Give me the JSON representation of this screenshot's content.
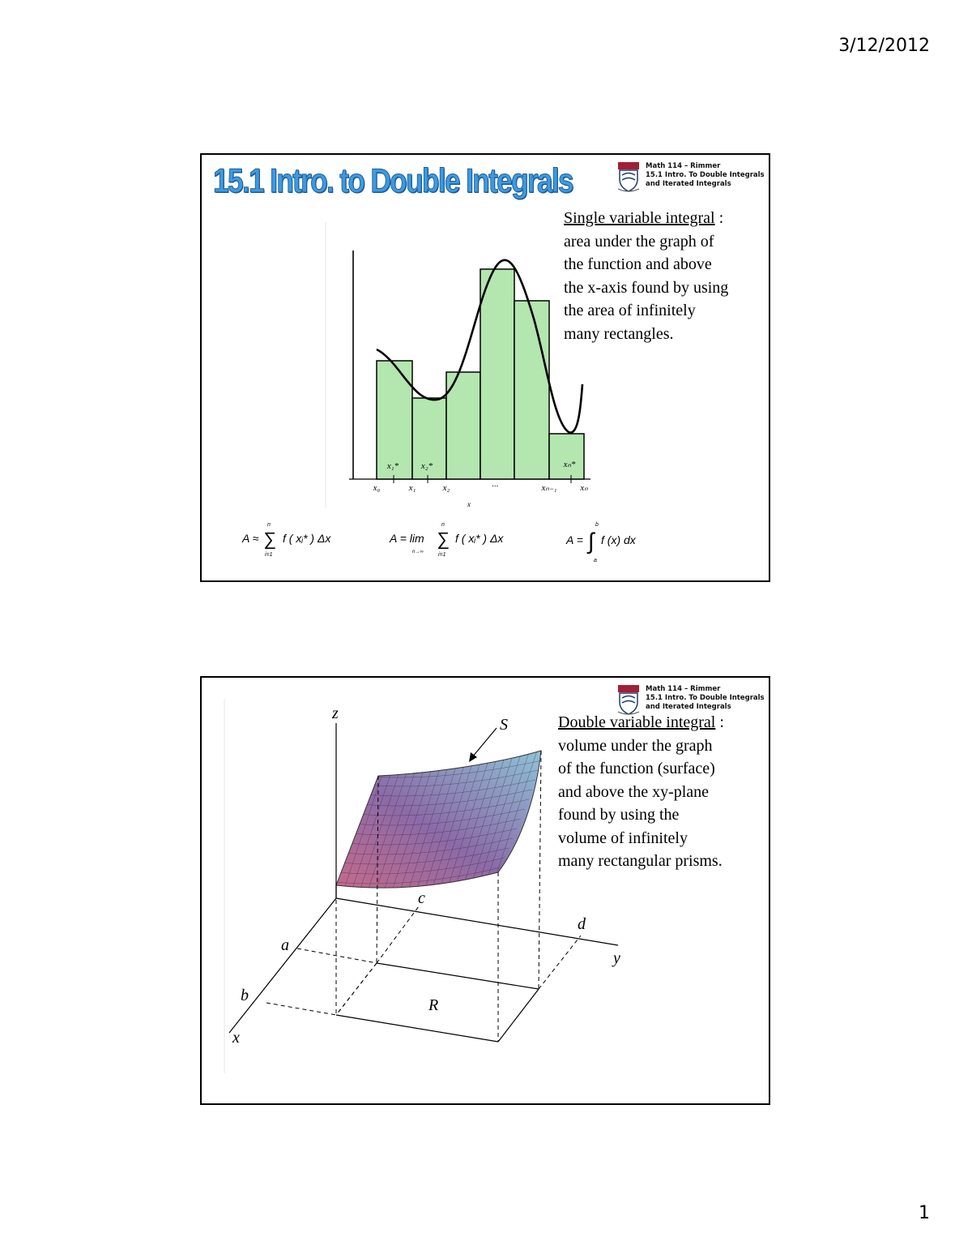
{
  "page": {
    "date": "3/12/2012",
    "number": "1"
  },
  "slides": [
    {
      "title": "15.1 Intro. to Double Integrals",
      "course": [
        "Math 114 – Rimmer",
        "15.1 Intro. To Double Integrals",
        "and Iterated Integrals"
      ],
      "desc_head": "Single variable integral",
      "desc_tail": " :",
      "desc_lines": [
        "area under the graph of",
        "the function and above",
        "the x-axis found by using",
        "the area of infinitely",
        "many rectangles."
      ],
      "x_labels": [
        "x₀",
        "x₁",
        "x₂",
        "···",
        "xₙ₋₁",
        "xₙ"
      ],
      "star_labels": [
        "x₁*",
        "x₂*",
        "xₙ*"
      ],
      "axis_label": "x",
      "formulas": {
        "riemann": {
          "lhs": "A ≈",
          "sigma": "∑",
          "upper": "n",
          "lower": "i=1",
          "body": "f ( xᵢ* ) Δx"
        },
        "limit": {
          "lhs": "A = lim",
          "sub": "n→∞",
          "sigma": "∑",
          "upper": "n",
          "lower": "i=1",
          "body": "f ( xᵢ* ) Δx"
        },
        "integral": {
          "lhs": "A =",
          "sign": "∫",
          "upper": "b",
          "lower": "a",
          "body": "f (x) dx"
        }
      },
      "colors": {
        "rect_fill": "#b4e6b0",
        "title": "#3b9be0"
      }
    },
    {
      "course": [
        "Math 114 – Rimmer",
        "15.1 Intro. To Double Integrals",
        "and Iterated Integrals"
      ],
      "desc_head": "Double variable integral",
      "desc_tail": " :",
      "desc_lines": [
        "volume under the graph",
        "of the function (surface)",
        "and above the xy-plane",
        "found by using the",
        "volume of infinitely",
        "many rectangular prisms."
      ],
      "labels": {
        "z": "z",
        "x": "x",
        "y": "y",
        "a": "a",
        "b": "b",
        "c": "c",
        "d": "d",
        "R": "R",
        "S": "S"
      }
    }
  ]
}
